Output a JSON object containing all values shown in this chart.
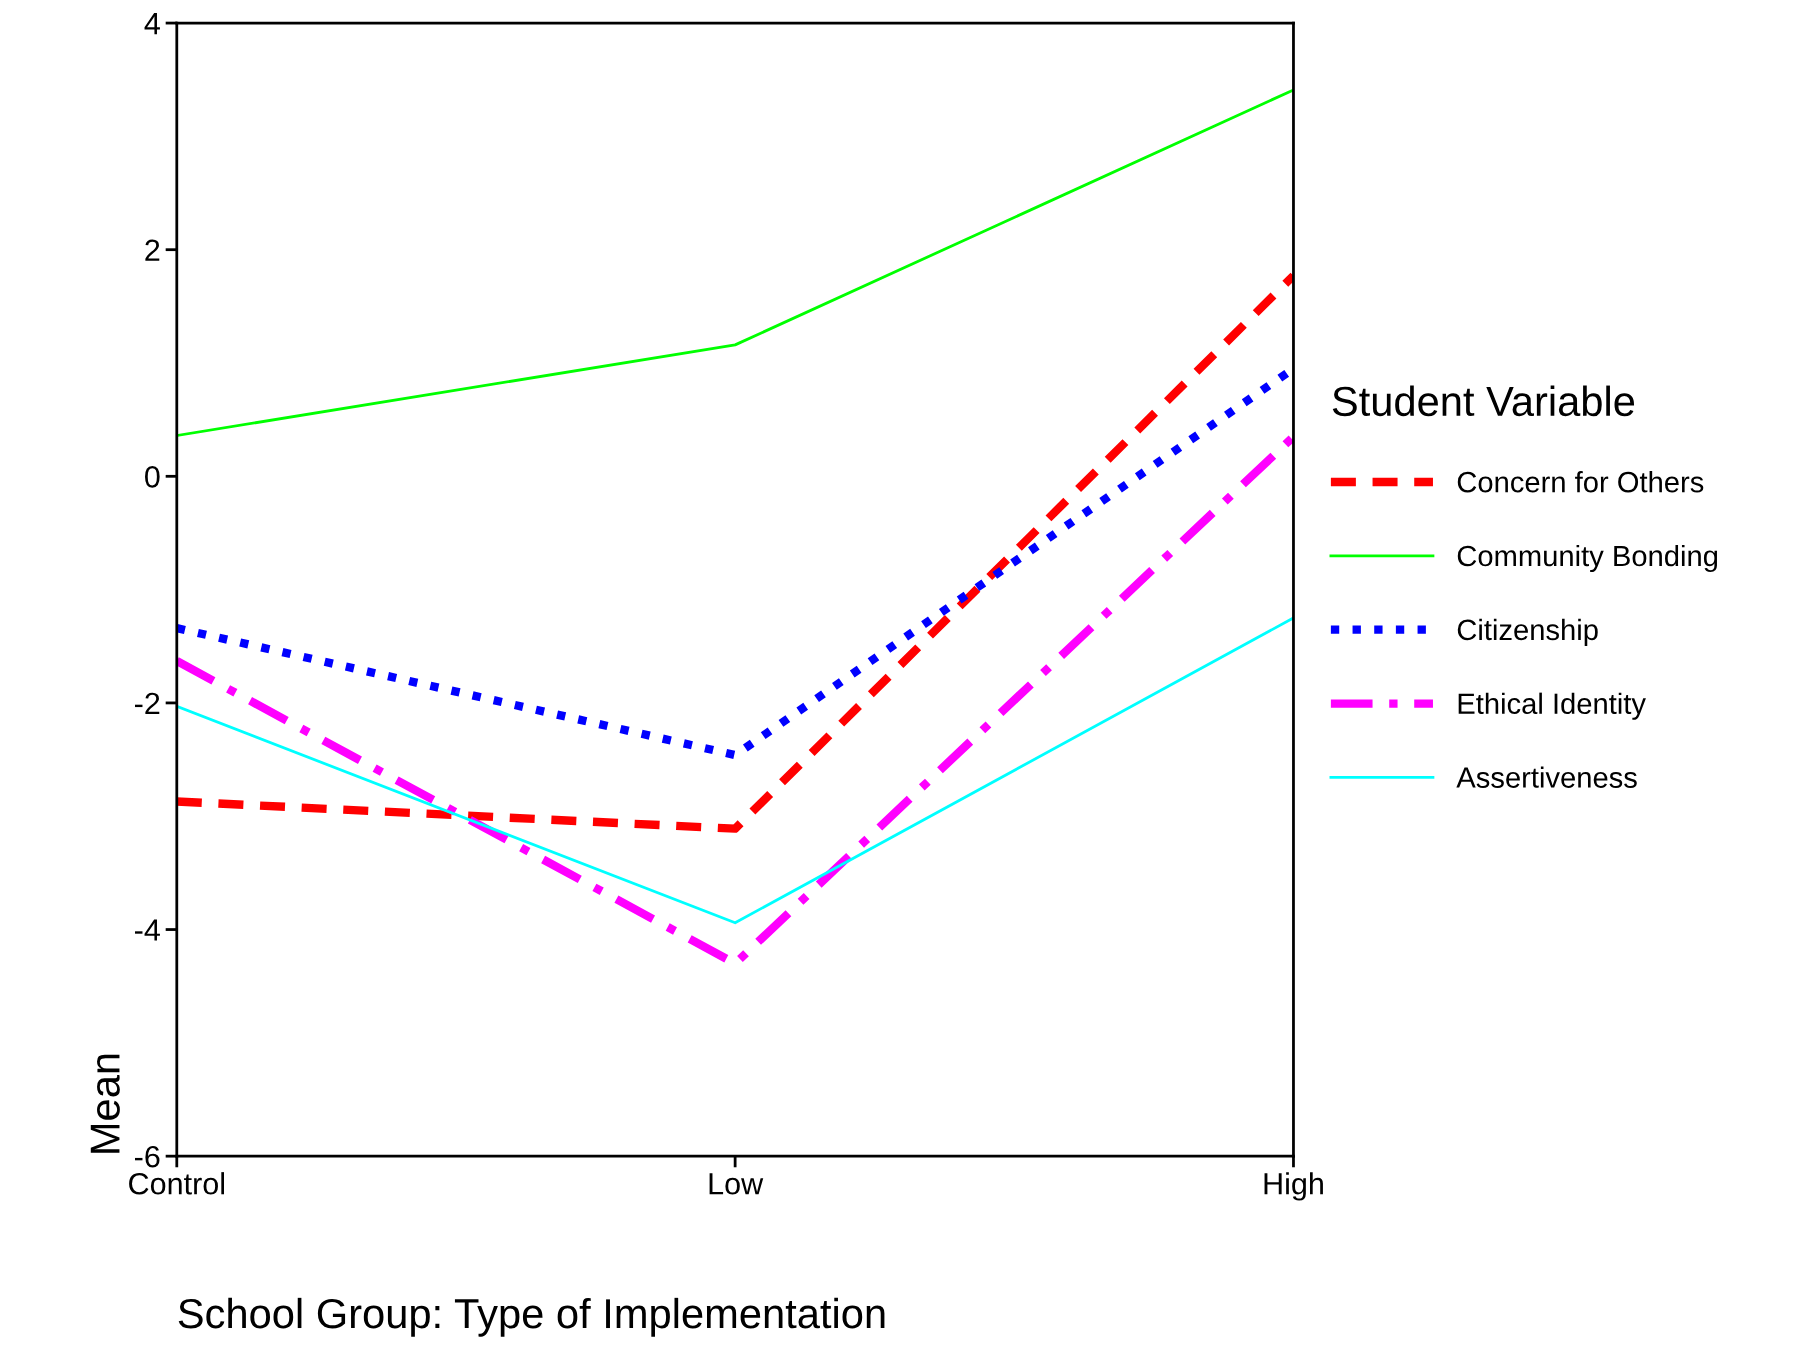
{
  "chart_data": {
    "type": "line",
    "xlabel": "School Group: Type of Implementation",
    "ylabel": "Mean",
    "legend_title": "Student Variable",
    "legend": "right",
    "grid": false,
    "marker": "none",
    "categories": [
      "Control",
      "Low",
      "High"
    ],
    "ylim": [
      -6,
      4
    ],
    "yticks": [
      -6,
      -4,
      -2,
      0,
      2,
      4
    ],
    "series": [
      {
        "name": "Concern for Others",
        "color": "#ff0000",
        "line_style": "dashed",
        "values": [
          -2.87,
          -3.11,
          1.77
        ]
      },
      {
        "name": "Community Bonding",
        "color": "#00ff00",
        "line_style": "solid",
        "values": [
          0.36,
          1.16,
          3.41
        ]
      },
      {
        "name": "Citizenship",
        "color": "#0000ff",
        "line_style": "dotted",
        "values": [
          -1.34,
          -2.46,
          0.95
        ]
      },
      {
        "name": "Ethical Identity",
        "color": "#ff00ff",
        "line_style": "dashdot",
        "values": [
          -1.63,
          -4.3,
          0.35
        ]
      },
      {
        "name": "Assertiveness",
        "color": "#00ffff",
        "line_style": "solid",
        "values": [
          -2.03,
          -3.94,
          -1.25
        ]
      }
    ]
  }
}
